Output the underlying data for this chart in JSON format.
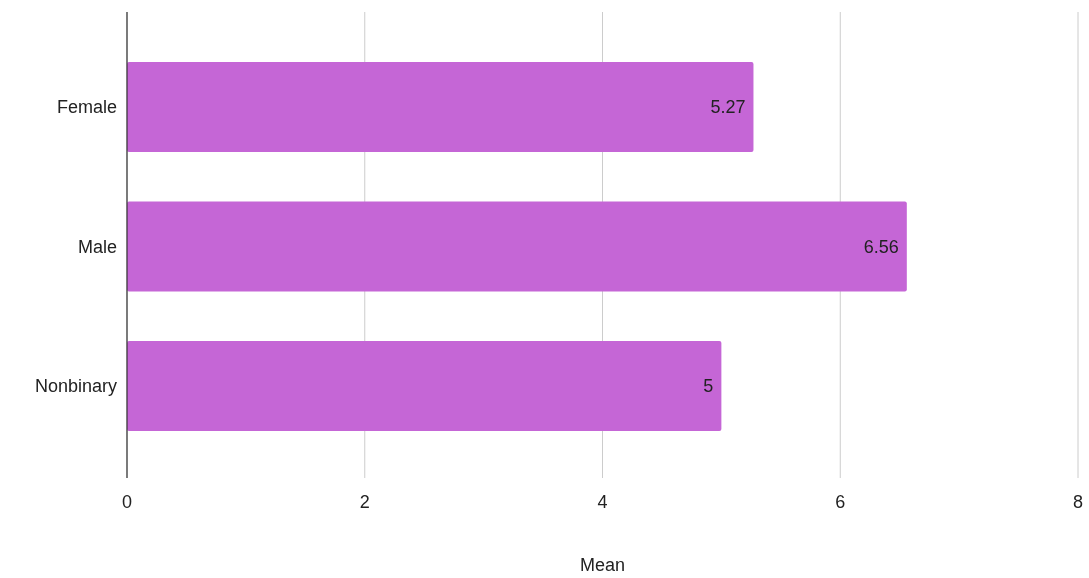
{
  "chart_data": {
    "type": "bar",
    "orientation": "horizontal",
    "categories": [
      "Female",
      "Male",
      "Nonbinary"
    ],
    "values": [
      5.27,
      6.56,
      5
    ],
    "color": "#c566d6",
    "xlim": [
      0,
      8
    ],
    "xticks": [
      0,
      2,
      4,
      6,
      8
    ],
    "xlabel": "Mean",
    "grid": "x",
    "data_labels": true
  }
}
